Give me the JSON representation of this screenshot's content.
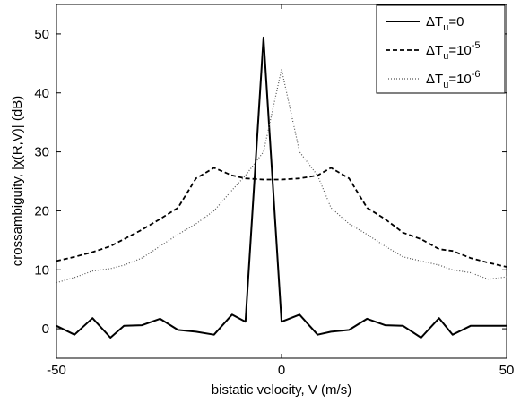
{
  "chart_data": {
    "type": "line",
    "xlabel": "bistatic velocity, V (m/s)",
    "ylabel": "crossambiguity, |χ(R,V)| (dB)",
    "xlim": [
      -50,
      50
    ],
    "ylim": [
      -5,
      55
    ],
    "xticks": [
      -50,
      0,
      50
    ],
    "yticks": [
      0,
      10,
      20,
      30,
      40,
      50
    ],
    "grid": false,
    "legend_position": "top-right",
    "series": [
      {
        "name": "ΔTu=0",
        "legend": {
          "base": "ΔT",
          "sub": "u",
          "rest": "=0",
          "sup": ""
        },
        "color": "#000000",
        "style": "solid",
        "x": [
          -50,
          -46,
          -42,
          -38,
          -35,
          -31,
          -27,
          -23,
          -19,
          -15,
          -11,
          -8,
          -4,
          0,
          4,
          8,
          11,
          15,
          19,
          23,
          27,
          31,
          35,
          38,
          42,
          46,
          50
        ],
        "y": [
          0.5,
          -1.0,
          1.8,
          -1.5,
          0.5,
          0.6,
          1.7,
          -0.2,
          -0.5,
          -1.0,
          2.4,
          1.2,
          49.4,
          1.2,
          2.4,
          -1.0,
          -0.5,
          -0.2,
          1.7,
          0.6,
          0.5,
          -1.5,
          1.8,
          -1.0,
          0.5,
          0.5,
          0.5
        ]
      },
      {
        "name": "ΔTu=10^-5",
        "legend": {
          "base": "ΔT",
          "sub": "u",
          "rest": "=10",
          "sup": "-5"
        },
        "color": "#000000",
        "style": "dashed",
        "x": [
          -50,
          -46,
          -42,
          -38,
          -35,
          -31,
          -27,
          -23,
          -19,
          -15,
          -11,
          -8,
          -4,
          0,
          4,
          8,
          11,
          15,
          19,
          23,
          27,
          31,
          35,
          38,
          42,
          46,
          50
        ],
        "y": [
          11.5,
          12.2,
          13.0,
          14.0,
          15.2,
          16.8,
          18.6,
          20.5,
          25.5,
          27.3,
          26.0,
          25.5,
          25.3,
          25.3,
          25.5,
          26.0,
          27.3,
          25.5,
          20.5,
          18.6,
          16.3,
          15.2,
          13.5,
          13.2,
          12.0,
          11.2,
          10.5
        ]
      },
      {
        "name": "ΔTu=10^-6",
        "legend": {
          "base": "ΔT",
          "sub": "u",
          "rest": "=10",
          "sup": "-6"
        },
        "color": "#555555",
        "style": "dotted",
        "x": [
          -50,
          -46,
          -42,
          -38,
          -35,
          -31,
          -27,
          -23,
          -19,
          -15,
          -11,
          -8,
          -4,
          0,
          4,
          8,
          11,
          15,
          19,
          23,
          27,
          31,
          35,
          38,
          42,
          46,
          50
        ],
        "y": [
          7.8,
          8.7,
          9.8,
          10.2,
          10.8,
          12.0,
          14.0,
          16.0,
          17.8,
          20.0,
          23.5,
          26.0,
          30.0,
          44.0,
          30.0,
          26.0,
          20.5,
          17.8,
          16.0,
          14.0,
          12.2,
          11.5,
          10.8,
          10.0,
          9.5,
          8.4,
          8.8
        ]
      }
    ]
  }
}
